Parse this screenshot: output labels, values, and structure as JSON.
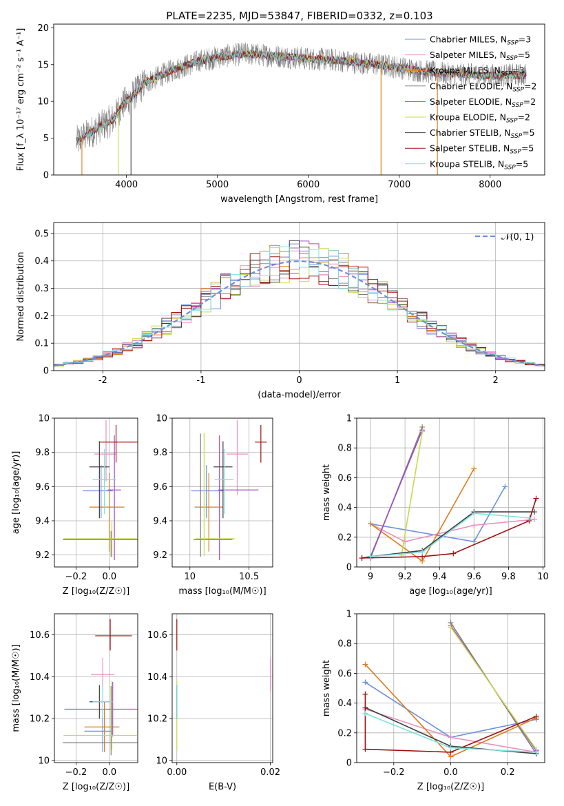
{
  "figure": {
    "title": "PLATE=2235, MJD=53847, FIBERID=0332, z=0.103"
  },
  "colors": {
    "Chabrier MILES": "#6b8ee0",
    "Salpeter MILES": "#e98fbf",
    "Kroupa MILES": "#e07b1a",
    "Chabrier ELODIE": "#7f7f7f",
    "Salpeter ELODIE": "#a24cc4",
    "Kroupa ELODIE": "#c7d94a",
    "Chabrier STELIB": "#3f3f3f",
    "Salpeter STELIB": "#a01010",
    "Kroupa STELIB": "#7fe0e0"
  },
  "chart_data": [
    {
      "id": "spectrum",
      "type": "line",
      "xlabel": "wavelength [Angstrom, rest frame]",
      "ylabel": "Flux [f_λ 10⁻¹⁷ erg cm⁻² s⁻¹ A⁻¹]",
      "xlim": [
        3200,
        8600
      ],
      "ylim": [
        0,
        20.5
      ],
      "xticks": [
        4000,
        5000,
        6000,
        7000,
        8000
      ],
      "yticks": [
        0,
        5,
        10,
        15,
        20
      ],
      "legend": "top-right",
      "legend_entries": [
        {
          "series": "Chabrier MILES",
          "label": "Chabrier MILES, N",
          "sub": "SSP",
          "suffix": "=3"
        },
        {
          "series": "Salpeter MILES",
          "label": "Salpeter MILES, N",
          "sub": "SSP",
          "suffix": "=5"
        },
        {
          "series": "Kroupa MILES",
          "label": "Kroupa MILES, N",
          "sub": "SSP",
          "suffix": "=3"
        },
        {
          "series": "Chabrier ELODIE",
          "label": "Chabrier ELODIE, N",
          "sub": "SSP",
          "suffix": "=2"
        },
        {
          "series": "Salpeter ELODIE",
          "label": "Salpeter ELODIE, N",
          "sub": "SSP",
          "suffix": "=2"
        },
        {
          "series": "Kroupa ELODIE",
          "label": "Kroupa ELODIE, N",
          "sub": "SSP",
          "suffix": "=2"
        },
        {
          "series": "Chabrier STELIB",
          "label": "Chabrier STELIB, N",
          "sub": "SSP",
          "suffix": "=5"
        },
        {
          "series": "Salpeter STELIB",
          "label": "Salpeter STELIB, N",
          "sub": "SSP",
          "suffix": "=5"
        },
        {
          "series": "Kroupa STELIB",
          "label": "Kroupa STELIB, N",
          "sub": "SSP",
          "suffix": "=5"
        }
      ],
      "continuum": {
        "x": [
          3450,
          3700,
          3850,
          3950,
          4050,
          4200,
          4500,
          4800,
          5000,
          5300,
          5500,
          5800,
          6000,
          6300,
          6600,
          6900,
          7200,
          7500,
          8000,
          8400
        ],
        "y": [
          4.5,
          6.5,
          7.5,
          9.5,
          10.5,
          12.5,
          14.2,
          15.5,
          16.0,
          16.5,
          16.3,
          16.0,
          15.8,
          15.6,
          15.2,
          14.8,
          14.2,
          13.8,
          13.5,
          13.6
        ]
      },
      "spikes_down": [
        {
          "series": "Kroupa ELODIE",
          "x": 3910
        },
        {
          "series": "Chabrier STELIB",
          "x": 4050
        },
        {
          "series": "Kroupa ELODIE",
          "x": 6800
        },
        {
          "series": "Kroupa MILES",
          "x": 6800
        },
        {
          "series": "Kroupa MILES",
          "x": 7420
        },
        {
          "series": "Kroupa MILES",
          "x": 3510
        }
      ]
    },
    {
      "id": "residuals",
      "type": "line",
      "xlabel": "(data-model)/error",
      "ylabel": "Normed distribution",
      "xlim": [
        -2.5,
        2.5
      ],
      "ylim": [
        0,
        0.54
      ],
      "xticks": [
        -2,
        -1,
        0,
        1,
        2
      ],
      "yticks": [
        0.0,
        0.1,
        0.2,
        0.3,
        0.4,
        0.5
      ],
      "grid": true,
      "legend": "top-right",
      "legend_entries": [
        {
          "label": "𝒩(0, 1)",
          "style": "dashed"
        }
      ],
      "normal_curve": {
        "mu": 0,
        "sigma": 1
      },
      "histogram_bin_width": 0.1
    },
    {
      "id": "age-vs-Z",
      "type": "scatter",
      "xlabel": "Z [log₁₀(Z/Z☉)]",
      "ylabel": "age  [log₁₀(age/yr)]",
      "xlim": [
        -0.33,
        0.17
      ],
      "ylim": [
        9.13,
        10.0
      ],
      "xticks": [
        -0.2,
        0.0
      ],
      "xticklabels": [
        "−0.2",
        "0.0"
      ],
      "yticks": [
        9.2,
        9.4,
        9.6,
        9.8,
        10.0
      ],
      "grid": true,
      "points": [
        {
          "series": "Chabrier MILES",
          "x": -0.05,
          "y": 9.575,
          "xerr": [
            0.11,
            0.07
          ],
          "yerr": [
            0.16,
            0.15
          ]
        },
        {
          "series": "Salpeter MILES",
          "x": -0.02,
          "y": 9.79,
          "xerr": [
            0.07,
            0.06
          ],
          "yerr": [
            0.16,
            0.2
          ]
        },
        {
          "series": "Kroupa MILES",
          "x": 0.0,
          "y": 9.48,
          "xerr": [
            0.12,
            0.09
          ],
          "yerr": [
            0.26,
            0.2
          ]
        },
        {
          "series": "Chabrier ELODIE",
          "x": 0.01,
          "y": 9.29,
          "xerr": [
            0.29,
            0.16
          ],
          "yerr": [
            0.1,
            0.05
          ]
        },
        {
          "series": "Salpeter ELODIE",
          "x": 0.03,
          "y": 9.58,
          "xerr": [
            0.04,
            0.04
          ],
          "yerr": [
            0.41,
            0.32
          ]
        },
        {
          "series": "Kroupa ELODIE",
          "x": 0.015,
          "y": 9.295,
          "xerr": [
            0.29,
            0.15
          ],
          "yerr": [
            0.11,
            0.1
          ]
        },
        {
          "series": "Chabrier STELIB",
          "x": -0.06,
          "y": 9.715,
          "xerr": [
            0.06,
            0.06
          ],
          "yerr": [
            0.3,
            0.15
          ]
        },
        {
          "series": "Salpeter STELIB",
          "x": 0.04,
          "y": 9.86,
          "xerr": [
            0.1,
            0.14
          ],
          "yerr": [
            0.12,
            0.1
          ]
        },
        {
          "series": "Kroupa STELIB",
          "x": -0.03,
          "y": 9.64,
          "xerr": [
            0.07,
            0.07
          ],
          "yerr": [
            0.2,
            0.18
          ]
        }
      ]
    },
    {
      "id": "age-vs-mass",
      "type": "scatter",
      "xlabel": "mass [log₁₀(M/M☉)]",
      "ylabel": "",
      "xlim": [
        9.85,
        10.7
      ],
      "ylim": [
        9.13,
        10.0
      ],
      "xticks": [
        10.0,
        10.5
      ],
      "yticks": [
        9.2,
        9.4,
        9.6,
        9.8,
        10.0
      ],
      "grid": true,
      "points": [
        {
          "series": "Chabrier MILES",
          "x": 10.14,
          "y": 9.575,
          "xerr": [
            0.13,
            0.14
          ],
          "yerr": [
            0.16,
            0.15
          ]
        },
        {
          "series": "Salpeter MILES",
          "x": 10.4,
          "y": 9.79,
          "xerr": [
            0.09,
            0.09
          ],
          "yerr": [
            0.24,
            0.2
          ]
        },
        {
          "series": "Kroupa MILES",
          "x": 10.16,
          "y": 9.48,
          "xerr": [
            0.12,
            0.12
          ],
          "yerr": [
            0.26,
            0.2
          ]
        },
        {
          "series": "Chabrier ELODIE",
          "x": 10.09,
          "y": 9.29,
          "xerr": [
            0.06,
            0.27
          ],
          "yerr": [
            0.1,
            0.62
          ]
        },
        {
          "series": "Salpeter ELODIE",
          "x": 10.25,
          "y": 9.58,
          "xerr": [
            0.01,
            0.33
          ],
          "yerr": [
            0.41,
            0.32
          ]
        },
        {
          "series": "Kroupa ELODIE",
          "x": 10.12,
          "y": 9.295,
          "xerr": [
            0.07,
            0.26
          ],
          "yerr": [
            0.1,
            0.62
          ]
        },
        {
          "series": "Chabrier STELIB",
          "x": 10.28,
          "y": 9.715,
          "xerr": [
            0.08,
            0.08
          ],
          "yerr": [
            0.3,
            0.15
          ]
        },
        {
          "series": "Salpeter STELIB",
          "x": 10.6,
          "y": 9.86,
          "xerr": [
            0.05,
            0.05
          ],
          "yerr": [
            0.12,
            0.1
          ]
        },
        {
          "series": "Kroupa STELIB",
          "x": 10.29,
          "y": 9.64,
          "xerr": [
            0.08,
            0.08
          ],
          "yerr": [
            0.2,
            0.18
          ]
        }
      ]
    },
    {
      "id": "mass-weight-vs-age",
      "type": "line",
      "xlabel": "age  [log₁₀(age/yr)]",
      "ylabel": "mass weight",
      "xlim": [
        8.92,
        10.01
      ],
      "ylim": [
        0,
        1.0
      ],
      "xticks": [
        9.0,
        9.2,
        9.4,
        9.6,
        9.8,
        10.0
      ],
      "yticks": [
        0.0,
        0.2,
        0.4,
        0.6,
        0.8,
        1.0
      ],
      "grid": true,
      "series": [
        {
          "name": "Chabrier MILES",
          "x": [
            9.0,
            9.6,
            9.78
          ],
          "y": [
            0.29,
            0.17,
            0.54
          ]
        },
        {
          "name": "Salpeter MILES",
          "x": [
            9.0,
            9.2,
            9.6,
            9.95
          ],
          "y": [
            0.29,
            0.17,
            0.28,
            0.32
          ]
        },
        {
          "name": "Kroupa MILES",
          "x": [
            9.0,
            9.3,
            9.6
          ],
          "y": [
            0.29,
            0.04,
            0.66
          ]
        },
        {
          "name": "Chabrier ELODIE",
          "x": [
            9.0,
            9.3
          ],
          "y": [
            0.06,
            0.94
          ]
        },
        {
          "name": "Salpeter ELODIE",
          "x": [
            9.0,
            9.3
          ],
          "y": [
            0.07,
            0.92
          ]
        },
        {
          "name": "Kroupa ELODIE",
          "x": [
            9.18,
            9.3
          ],
          "y": [
            0.08,
            0.91
          ]
        },
        {
          "name": "Chabrier STELIB",
          "x": [
            8.95,
            9.0,
            9.3,
            9.6,
            9.95
          ],
          "y": [
            0.06,
            0.07,
            0.11,
            0.37,
            0.37
          ]
        },
        {
          "name": "Salpeter STELIB",
          "x": [
            8.95,
            9.3,
            9.48,
            9.92,
            9.96
          ],
          "y": [
            0.06,
            0.07,
            0.09,
            0.31,
            0.46
          ]
        },
        {
          "name": "Kroupa STELIB",
          "x": [
            9.0,
            9.3,
            9.6,
            9.92
          ],
          "y": [
            0.07,
            0.1,
            0.36,
            0.33
          ]
        }
      ]
    },
    {
      "id": "mass-vs-Z",
      "type": "scatter",
      "xlabel": "Z [log₁₀(Z/Z☉)]",
      "ylabel": "mass [log₁₀(M/M☉)]",
      "xlim": [
        -0.33,
        0.17
      ],
      "ylim": [
        9.99,
        10.7
      ],
      "xticks": [
        -0.2,
        0.0
      ],
      "xticklabels": [
        "−0.2",
        "0.0"
      ],
      "yticks": [
        10.0,
        10.2,
        10.4,
        10.6
      ],
      "grid": true,
      "points": [
        {
          "series": "Chabrier MILES",
          "x": -0.04,
          "y": 10.14,
          "xerr": [
            0.11,
            0.06
          ],
          "yerr": [
            0.1,
            0.1
          ]
        },
        {
          "series": "Salpeter MILES",
          "x": -0.04,
          "y": 10.41,
          "xerr": [
            0.07,
            0.07
          ],
          "yerr": [
            0.08,
            0.08
          ]
        },
        {
          "series": "Kroupa MILES",
          "x": -0.03,
          "y": 10.16,
          "xerr": [
            0.12,
            0.09
          ],
          "yerr": [
            0.12,
            0.12
          ]
        },
        {
          "series": "Chabrier ELODIE",
          "x": 0.01,
          "y": 10.085,
          "xerr": [
            0.29,
            0.16
          ],
          "yerr": [
            0.06,
            0.27
          ]
        },
        {
          "series": "Salpeter ELODIE",
          "x": 0.02,
          "y": 10.245,
          "xerr": [
            0.29,
            0.15
          ],
          "yerr": [
            0.13,
            0.13
          ]
        },
        {
          "series": "Kroupa ELODIE",
          "x": 0.015,
          "y": 10.12,
          "xerr": [
            0.29,
            0.15
          ],
          "yerr": [
            0.07,
            0.26
          ]
        },
        {
          "series": "Chabrier STELIB",
          "x": -0.06,
          "y": 10.28,
          "xerr": [
            0.06,
            0.06
          ],
          "yerr": [
            0.08,
            0.08
          ]
        },
        {
          "series": "Salpeter STELIB",
          "x": 0.005,
          "y": 10.595,
          "xerr": [
            0.09,
            0.13
          ],
          "yerr": [
            0.07,
            0.08
          ]
        },
        {
          "series": "Kroupa STELIB",
          "x": -0.04,
          "y": 10.28,
          "xerr": [
            0.06,
            0.06
          ],
          "yerr": [
            0.08,
            0.08
          ]
        }
      ]
    },
    {
      "id": "mass-vs-ebv",
      "type": "scatter",
      "xlabel": "E(B-V)",
      "ylabel": "",
      "xlim": [
        -0.001,
        0.0205
      ],
      "ylim": [
        9.99,
        10.7
      ],
      "xticks": [
        0.0,
        0.02
      ],
      "xticklabels": [
        "0.00",
        "0.02"
      ],
      "yticks": [
        10.0,
        10.2,
        10.4,
        10.6
      ],
      "grid": true,
      "points": [
        {
          "series": "Salpeter STELIB",
          "x": 0.0,
          "y": 10.595,
          "yerr": [
            0.07,
            0.08
          ]
        },
        {
          "series": "Kroupa ELODIE",
          "x": 0.0,
          "y": 10.12,
          "yerr": [
            0.07,
            0.26
          ]
        },
        {
          "series": "Chabrier STELIB",
          "x": 0.0,
          "y": 10.28,
          "yerr": [
            0.08,
            0.08
          ]
        },
        {
          "series": "Kroupa STELIB",
          "x": 0.0,
          "y": 10.28,
          "yerr": [
            0.08,
            0.08
          ]
        },
        {
          "series": "Salpeter MILES",
          "x": 0.02,
          "y": 10.41,
          "yerr": [
            0.08,
            0.08
          ]
        }
      ]
    },
    {
      "id": "mass-weight-vs-Z",
      "type": "line",
      "xlabel": "Z [log₁₀(Z/Z☉)]",
      "ylabel": "mass weight",
      "xlim": [
        -0.33,
        0.33
      ],
      "ylim": [
        0,
        1.0
      ],
      "xticks": [
        -0.2,
        0.0,
        0.2
      ],
      "xticklabels": [
        "−0.2",
        "0.0",
        "0.2"
      ],
      "yticks": [
        0.0,
        0.2,
        0.4,
        0.6,
        0.8,
        1.0
      ],
      "grid": true,
      "series": [
        {
          "name": "Chabrier MILES",
          "x": [
            -0.3,
            0.0,
            0.3
          ],
          "y": [
            0.54,
            0.17,
            0.29
          ]
        },
        {
          "name": "Salpeter MILES",
          "x": [
            -0.3,
            0.0,
            0.3
          ],
          "y": [
            0.36,
            0.17,
            0.07
          ]
        },
        {
          "name": "Kroupa MILES",
          "x": [
            -0.3,
            0.0,
            0.3
          ],
          "y": [
            0.66,
            0.04,
            0.3
          ]
        },
        {
          "name": "Chabrier ELODIE",
          "x": [
            0.0,
            0.3
          ],
          "y": [
            0.94,
            0.06
          ]
        },
        {
          "name": "Salpeter ELODIE",
          "x": [
            0.0,
            0.3
          ],
          "y": [
            0.92,
            0.08
          ]
        },
        {
          "name": "Kroupa ELODIE",
          "x": [
            0.0,
            0.3
          ],
          "y": [
            0.91,
            0.09
          ]
        },
        {
          "name": "Chabrier STELIB",
          "x": [
            -0.3,
            0.0,
            0.3
          ],
          "y": [
            0.37,
            0.11,
            0.06
          ]
        },
        {
          "name": "Salpeter STELIB",
          "x": [
            -0.3,
            -0.3,
            0.0,
            0.3
          ],
          "y": [
            0.46,
            0.09,
            0.07,
            0.31
          ]
        },
        {
          "name": "Kroupa STELIB",
          "x": [
            -0.3,
            0.0,
            0.3
          ],
          "y": [
            0.33,
            0.1,
            0.07
          ]
        }
      ]
    }
  ]
}
